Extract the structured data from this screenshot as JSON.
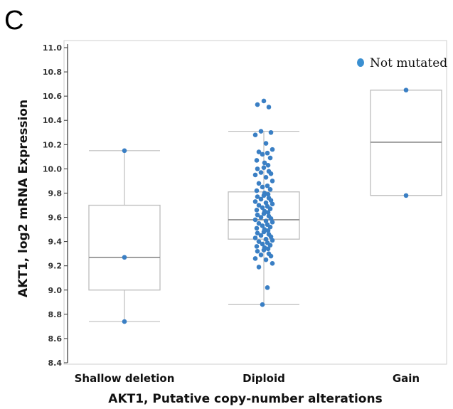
{
  "panel_label": "C",
  "chart_data": {
    "type": "box",
    "title": "",
    "xlabel": "AKT1, Putative copy-number alterations",
    "ylabel": "AKT1, log2 mRNA Expression",
    "ylim": [
      8.4,
      11.0
    ],
    "yticks": [
      "8.4",
      "8.6",
      "8.8",
      "9.0",
      "9.2",
      "9.4",
      "9.6",
      "9.8",
      "10.0",
      "10.2",
      "10.4",
      "10.6",
      "10.8",
      "11.0"
    ],
    "categories": [
      "Shallow deletion",
      "Diploid",
      "Gain"
    ],
    "legend": {
      "label": "Not mutated",
      "color": "#3a8fd1",
      "placement": "top-right"
    },
    "box_color": "#bdbdbd",
    "point_color": "#3a7fc4",
    "boxes": [
      {
        "category": "Shallow deletion",
        "whisker_low": 8.74,
        "q1": 9.0,
        "median": 9.27,
        "q3": 9.7,
        "whisker_high": 10.15
      },
      {
        "category": "Diploid",
        "whisker_low": 8.88,
        "q1": 9.42,
        "median": 9.58,
        "q3": 9.81,
        "whisker_high": 10.31
      },
      {
        "category": "Gain",
        "whisker_low": 9.78,
        "q1": 9.78,
        "median": 10.22,
        "q3": 10.65,
        "whisker_high": 10.65
      }
    ],
    "points": [
      {
        "category": "Shallow deletion",
        "values": [
          10.15,
          9.27,
          8.74
        ]
      },
      {
        "category": "Diploid",
        "values": [
          10.56,
          10.53,
          10.51,
          10.31,
          10.3,
          10.28,
          10.21,
          10.16,
          10.14,
          10.13,
          10.12,
          10.09,
          10.07,
          10.05,
          10.03,
          10.01,
          10.0,
          9.98,
          9.97,
          9.96,
          9.95,
          9.93,
          9.9,
          9.88,
          9.86,
          9.85,
          9.83,
          9.82,
          9.8,
          9.79,
          9.78,
          9.77,
          9.76,
          9.75,
          9.74,
          9.73,
          9.72,
          9.71,
          9.7,
          9.69,
          9.68,
          9.67,
          9.66,
          9.65,
          9.64,
          9.63,
          9.62,
          9.61,
          9.6,
          9.59,
          9.58,
          9.57,
          9.56,
          9.55,
          9.54,
          9.53,
          9.52,
          9.51,
          9.5,
          9.49,
          9.48,
          9.47,
          9.46,
          9.45,
          9.44,
          9.43,
          9.42,
          9.41,
          9.4,
          9.39,
          9.38,
          9.37,
          9.36,
          9.35,
          9.34,
          9.33,
          9.32,
          9.3,
          9.29,
          9.28,
          9.26,
          9.25,
          9.22,
          9.19,
          9.02,
          8.88
        ]
      },
      {
        "category": "Gain",
        "values": [
          10.65,
          9.78
        ]
      }
    ]
  }
}
